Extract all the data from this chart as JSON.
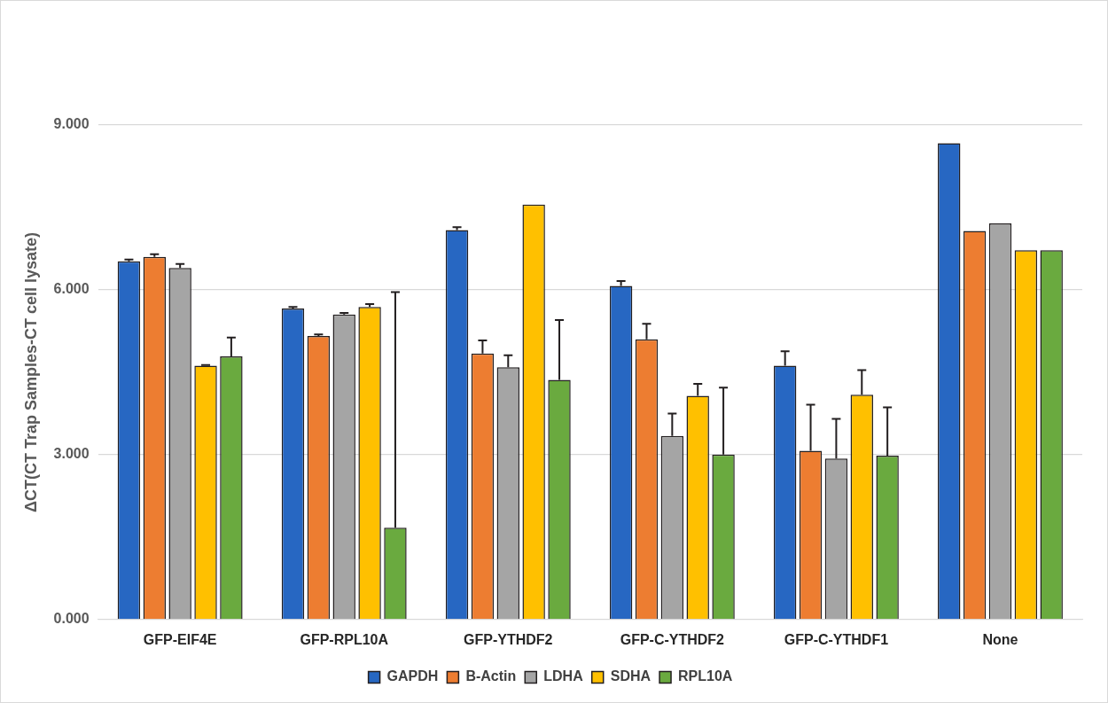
{
  "chart_data": {
    "type": "bar",
    "ylabel": "ΔCT(CT Trap Samples-CT cell lysate)",
    "categories": [
      "GFP-EIF4E",
      "GFP-RPL10A",
      "GFP-YTHDF2",
      "GFP-C-YTHDF2",
      "GFP-C-YTHDF1",
      "None"
    ],
    "series": [
      {
        "name": "GAPDH",
        "color": "#2767c2",
        "values": [
          6.52,
          5.66,
          7.09,
          6.07,
          4.62,
          8.67
        ],
        "errors": [
          [
            6.52,
            6.55
          ],
          [
            5.66,
            5.69
          ],
          [
            7.09,
            7.14
          ],
          [
            6.07,
            6.16
          ],
          [
            4.62,
            4.88
          ],
          null
        ]
      },
      {
        "name": "B-Actin",
        "color": "#ed7d31",
        "values": [
          6.6,
          5.16,
          4.84,
          5.1,
          3.07,
          7.07
        ],
        "errors": [
          [
            6.6,
            6.65
          ],
          [
            5.16,
            5.19
          ],
          [
            4.84,
            5.08
          ],
          [
            5.1,
            5.38
          ],
          [
            3.07,
            3.91
          ],
          null
        ]
      },
      {
        "name": "LDHA",
        "color": "#a5a5a5",
        "values": [
          6.4,
          5.55,
          4.59,
          3.34,
          2.93,
          7.21
        ],
        "errors": [
          [
            6.4,
            6.47
          ],
          [
            5.55,
            5.58
          ],
          [
            4.59,
            4.81
          ],
          [
            3.34,
            3.75
          ],
          [
            2.93,
            3.65
          ],
          null
        ]
      },
      {
        "name": "SDHA",
        "color": "#ffc000",
        "values": [
          4.62,
          5.69,
          7.55,
          4.07,
          4.09,
          6.72
        ],
        "errors": [
          [
            4.62,
            4.63
          ],
          [
            5.69,
            5.74
          ],
          null,
          [
            4.07,
            4.29
          ],
          [
            4.09,
            4.54
          ],
          null
        ]
      },
      {
        "name": "RPL10A",
        "color": "#6aaa3f",
        "values": [
          4.79,
          1.67,
          4.36,
          3.0,
          2.98,
          6.72
        ],
        "errors": [
          [
            4.79,
            5.13
          ],
          [
            1.67,
            5.96
          ],
          [
            4.36,
            5.45
          ],
          [
            3.0,
            4.22
          ],
          [
            2.98,
            3.86
          ],
          null
        ]
      }
    ],
    "ylim": [
      0,
      9
    ],
    "yticks": [
      {
        "value": 0,
        "label": "0.000"
      },
      {
        "value": 3,
        "label": "3.000"
      },
      {
        "value": 6,
        "label": "6.000"
      },
      {
        "value": 9,
        "label": "9.000"
      }
    ],
    "grid": "y",
    "legend": "bottom"
  }
}
